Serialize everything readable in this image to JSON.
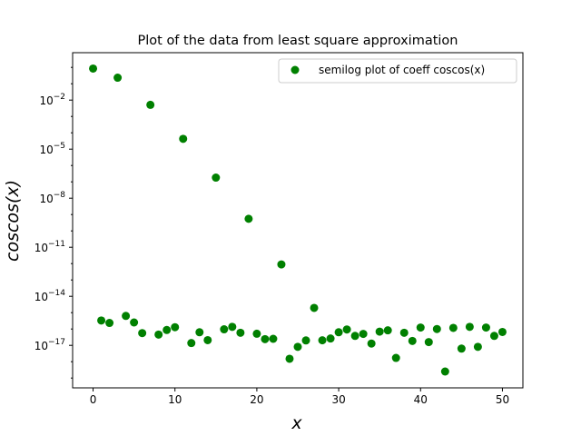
{
  "chart_data": {
    "type": "scatter",
    "title": "Plot of the data from least square approximation",
    "xlabel": "x",
    "ylabel": "coscos(x)",
    "y_scale": "log",
    "xlim": [
      -2.5,
      52.5
    ],
    "ylim_log10": [
      -19.6,
      0.9
    ],
    "x_ticks": [
      {
        "value": 0,
        "label": "0"
      },
      {
        "value": 10,
        "label": "10"
      },
      {
        "value": 20,
        "label": "20"
      },
      {
        "value": 30,
        "label": "30"
      },
      {
        "value": 40,
        "label": "40"
      },
      {
        "value": 50,
        "label": "50"
      }
    ],
    "y_ticks": [
      {
        "exp": -2,
        "mantissa": "10",
        "sup": "−2"
      },
      {
        "exp": -5,
        "mantissa": "10",
        "sup": "−5"
      },
      {
        "exp": -8,
        "mantissa": "10",
        "sup": "−8"
      },
      {
        "exp": -11,
        "mantissa": "10",
        "sup": "−11"
      },
      {
        "exp": -14,
        "mantissa": "10",
        "sup": "−14"
      },
      {
        "exp": -17,
        "mantissa": "10",
        "sup": "−17"
      }
    ],
    "legend_position": "top-right",
    "grid": false,
    "series": [
      {
        "name": "semilog plot of coeff coscos(x)",
        "color": "#008000",
        "marker": "circle",
        "x": [
          0,
          1,
          2,
          3,
          4,
          5,
          6,
          7,
          8,
          9,
          10,
          11,
          12,
          13,
          14,
          15,
          16,
          17,
          18,
          19,
          20,
          21,
          22,
          23,
          24,
          25,
          26,
          27,
          28,
          29,
          30,
          31,
          32,
          33,
          34,
          35,
          36,
          37,
          38,
          39,
          40,
          41,
          42,
          43,
          44,
          45,
          46,
          47,
          48,
          49,
          50
        ],
        "log10_y": [
          -0.07,
          -15.48,
          -15.63,
          -0.63,
          -15.2,
          -15.6,
          -16.25,
          -2.29,
          -16.34,
          -16.06,
          -15.89,
          -4.37,
          -16.86,
          -16.2,
          -16.68,
          -6.74,
          -16.02,
          -15.87,
          -16.23,
          -9.26,
          -16.29,
          -16.62,
          -16.6,
          -12.05,
          -17.82,
          -17.09,
          -16.7,
          -14.71,
          -16.69,
          -16.58,
          -16.2,
          -16.03,
          -16.42,
          -16.3,
          -16.89,
          -16.16,
          -16.08,
          -17.77,
          -16.23,
          -16.73,
          -15.91,
          -16.8,
          -16.0,
          -18.6,
          -15.93,
          -17.2,
          -15.87,
          -17.09,
          -15.91,
          -16.42,
          -16.18
        ]
      }
    ]
  }
}
